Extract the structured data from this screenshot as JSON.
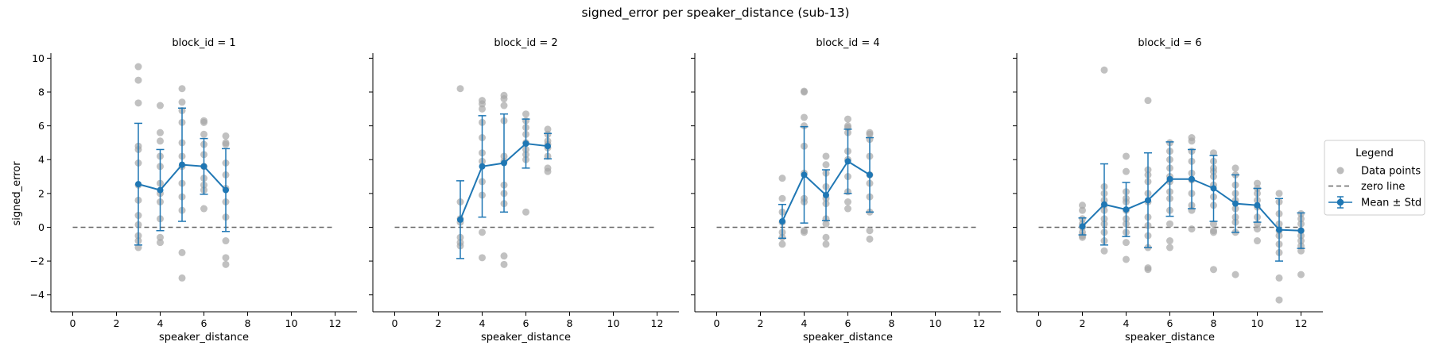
{
  "chart_data": {
    "type": "scatter",
    "title": "signed_error per speaker_distance (sub-13)",
    "xlabel": "speaker_distance",
    "ylabel": "signed_error",
    "xlim": [
      -1,
      13
    ],
    "ylim": [
      -5,
      10.3
    ],
    "xticks": [
      0,
      2,
      4,
      6,
      8,
      10,
      12
    ],
    "yticks": [
      -4,
      -2,
      0,
      2,
      4,
      6,
      8,
      10
    ],
    "zero_line": 0,
    "grid": false,
    "legend": {
      "title": "Legend",
      "placement": "right",
      "entries": [
        "Data points",
        "zero line",
        "Mean ± Std"
      ]
    },
    "colors": {
      "points": "#a6a6a6",
      "mean": "#1f77b4",
      "zero": "#666666"
    },
    "panels": [
      {
        "title": "block_id = 1",
        "mean": [
          {
            "x": 3,
            "y": 2.55,
            "std": 3.6
          },
          {
            "x": 4,
            "y": 2.2,
            "std": 2.4
          },
          {
            "x": 5,
            "y": 3.7,
            "std": 3.35
          },
          {
            "x": 6,
            "y": 3.6,
            "std": 1.65
          },
          {
            "x": 7,
            "y": 2.2,
            "std": 2.45
          }
        ],
        "points": [
          {
            "x": 3,
            "y": [
              9.5,
              8.7,
              7.35,
              4.8,
              4.6,
              3.8,
              2.5,
              1.6,
              0.7,
              0.15,
              -0.5,
              -0.8,
              -1.2
            ]
          },
          {
            "x": 4,
            "y": [
              7.2,
              5.6,
              5.1,
              4.2,
              3.6,
              2.6,
              2.0,
              1.5,
              0.5,
              -0.6,
              -0.9
            ]
          },
          {
            "x": 5,
            "y": [
              8.2,
              7.4,
              6.9,
              6.2,
              5.0,
              4.2,
              3.6,
              2.6,
              1.8,
              1.0,
              -1.5,
              -3.0
            ]
          },
          {
            "x": 6,
            "y": [
              6.3,
              6.2,
              5.5,
              4.9,
              4.3,
              3.6,
              2.9,
              2.5,
              2.2,
              1.1
            ]
          },
          {
            "x": 7,
            "y": [
              5.4,
              5.0,
              4.9,
              3.8,
              3.1,
              2.3,
              1.5,
              0.6,
              -0.8,
              -1.8,
              -2.2
            ]
          }
        ]
      },
      {
        "title": "block_id = 2",
        "mean": [
          {
            "x": 3,
            "y": 0.45,
            "std": 2.3
          },
          {
            "x": 4,
            "y": 3.6,
            "std": 3.0
          },
          {
            "x": 5,
            "y": 3.8,
            "std": 2.9
          },
          {
            "x": 6,
            "y": 4.95,
            "std": 1.45
          },
          {
            "x": 7,
            "y": 4.8,
            "std": 0.75
          }
        ],
        "points": [
          {
            "x": 3,
            "y": [
              8.2,
              1.5,
              0.5,
              0.3,
              -0.6,
              -0.9,
              -1.1
            ]
          },
          {
            "x": 4,
            "y": [
              7.5,
              7.3,
              7.0,
              6.2,
              5.3,
              4.4,
              3.9,
              2.7,
              1.9,
              -0.3,
              -1.8
            ]
          },
          {
            "x": 5,
            "y": [
              7.8,
              7.6,
              7.2,
              6.3,
              4.2,
              3.9,
              2.5,
              2.0,
              1.4,
              -1.7,
              -2.2
            ]
          },
          {
            "x": 6,
            "y": [
              6.7,
              6.3,
              5.9,
              5.5,
              5.0,
              4.6,
              4.3,
              4.0,
              0.9
            ]
          },
          {
            "x": 7,
            "y": [
              5.8,
              5.5,
              5.1,
              4.9,
              4.7,
              4.2,
              3.5,
              3.3
            ]
          }
        ]
      },
      {
        "title": "block_id = 4",
        "mean": [
          {
            "x": 3,
            "y": 0.35,
            "std": 1.0
          },
          {
            "x": 4,
            "y": 3.1,
            "std": 2.85
          },
          {
            "x": 5,
            "y": 1.9,
            "std": 1.5
          },
          {
            "x": 6,
            "y": 3.9,
            "std": 1.9
          },
          {
            "x": 7,
            "y": 3.1,
            "std": 2.2
          }
        ],
        "points": [
          {
            "x": 3,
            "y": [
              2.9,
              1.7,
              0.9,
              0.3,
              -0.3,
              -0.6,
              -1.0
            ]
          },
          {
            "x": 4,
            "y": [
              8.05,
              8.0,
              6.5,
              6.0,
              4.8,
              3.2,
              1.7,
              1.5,
              -0.2,
              -0.3
            ]
          },
          {
            "x": 5,
            "y": [
              4.2,
              3.7,
              3.2,
              2.4,
              1.7,
              1.4,
              0.5,
              0.2,
              -0.6,
              -1.0
            ]
          },
          {
            "x": 6,
            "y": [
              6.4,
              6.0,
              5.9,
              5.6,
              4.5,
              4.0,
              3.0,
              2.1,
              1.5,
              1.1
            ]
          },
          {
            "x": 7,
            "y": [
              5.6,
              5.5,
              5.2,
              4.2,
              3.1,
              2.6,
              1.8,
              0.9,
              -0.2,
              -0.7
            ]
          }
        ]
      },
      {
        "title": "block_id = 6",
        "mean": [
          {
            "x": 2,
            "y": 0.05,
            "std": 0.5
          },
          {
            "x": 3,
            "y": 1.35,
            "std": 2.4
          },
          {
            "x": 4,
            "y": 1.05,
            "std": 1.6
          },
          {
            "x": 5,
            "y": 1.6,
            "std": 2.8
          },
          {
            "x": 6,
            "y": 2.85,
            "std": 2.2
          },
          {
            "x": 7,
            "y": 2.85,
            "std": 1.75
          },
          {
            "x": 8,
            "y": 2.3,
            "std": 1.95
          },
          {
            "x": 9,
            "y": 1.4,
            "std": 1.7
          },
          {
            "x": 10,
            "y": 1.3,
            "std": 1.0
          },
          {
            "x": 11,
            "y": -0.15,
            "std": 1.85
          },
          {
            "x": 12,
            "y": -0.2,
            "std": 1.05
          }
        ],
        "points": [
          {
            "x": 2,
            "y": [
              1.3,
              1.0,
              0.5,
              0.2,
              0.0,
              -0.3,
              -0.5,
              -0.6
            ]
          },
          {
            "x": 3,
            "y": [
              9.3,
              2.4,
              2.0,
              1.6,
              1.3,
              1.0,
              0.5,
              0.2,
              -0.3,
              -0.8,
              -1.4
            ]
          },
          {
            "x": 4,
            "y": [
              4.2,
              3.3,
              2.1,
              1.7,
              1.5,
              1.0,
              0.5,
              0.2,
              -0.3,
              -0.9,
              -1.9
            ]
          },
          {
            "x": 5,
            "y": [
              7.5,
              3.4,
              3.1,
              2.7,
              2.0,
              1.5,
              0.6,
              0.1,
              -0.5,
              -1.2,
              -2.4,
              -2.5
            ]
          },
          {
            "x": 6,
            "y": [
              5.0,
              4.5,
              4.0,
              3.5,
              3.0,
              2.7,
              2.1,
              1.7,
              1.0,
              0.2,
              -0.8,
              -1.2
            ]
          },
          {
            "x": 7,
            "y": [
              5.3,
              5.1,
              4.5,
              3.9,
              3.2,
              2.8,
              2.0,
              1.3,
              1.0,
              -0.1
            ]
          },
          {
            "x": 8,
            "y": [
              4.4,
              3.9,
              3.5,
              3.3,
              3.0,
              2.5,
              1.8,
              1.3,
              0.2,
              -0.2,
              -0.3,
              -2.5
            ]
          },
          {
            "x": 9,
            "y": [
              3.5,
              3.1,
              2.5,
              2.0,
              1.6,
              1.1,
              0.6,
              0.3,
              -0.3,
              -2.8
            ]
          },
          {
            "x": 10,
            "y": [
              2.6,
              2.3,
              2.0,
              1.6,
              1.2,
              0.6,
              0.2,
              -0.1,
              -0.8
            ]
          },
          {
            "x": 11,
            "y": [
              2.0,
              1.5,
              0.8,
              0.2,
              -0.2,
              -0.5,
              -1.0,
              -1.5,
              -3.0,
              -4.3
            ]
          },
          {
            "x": 12,
            "y": [
              0.8,
              0.5,
              0.2,
              -0.2,
              -0.5,
              -0.8,
              -1.1,
              -1.4,
              -2.8
            ]
          }
        ]
      }
    ]
  }
}
